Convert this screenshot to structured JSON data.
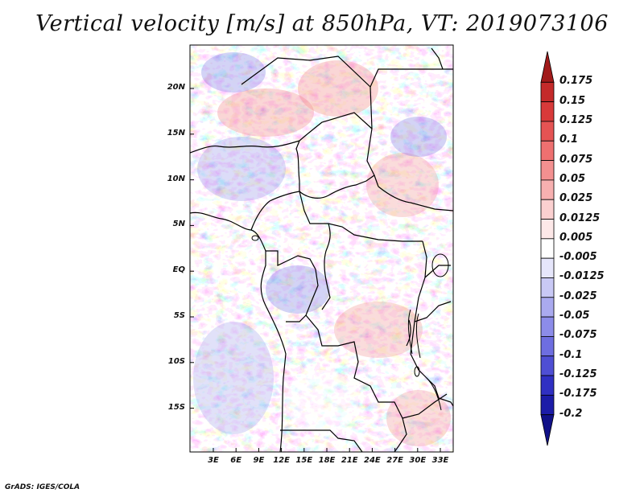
{
  "title": "Vertical velocity [m/s] at 850hPa, VT: 2019073106",
  "footer": "GrADS: IGES/COLA",
  "map": {
    "lat_labels": [
      "20N",
      "15N",
      "10N",
      "5N",
      "EQ",
      "5S",
      "10S",
      "15S"
    ],
    "lon_labels": [
      "3E",
      "6E",
      "9E",
      "12E",
      "15E",
      "18E",
      "21E",
      "24E",
      "27E",
      "30E",
      "33E"
    ]
  },
  "colorbar": {
    "labels": [
      "0.175",
      "0.15",
      "0.125",
      "0.1",
      "0.075",
      "0.05",
      "0.025",
      "0.0125",
      "0.005",
      "-0.005",
      "-0.0125",
      "-0.025",
      "-0.05",
      "-0.075",
      "-0.1",
      "-0.125",
      "-0.175",
      "-0.2"
    ],
    "colors": [
      "#a11a1a",
      "#c42a2a",
      "#d83a3a",
      "#e55353",
      "#ee7070",
      "#f39090",
      "#f7b0b0",
      "#fbd0d0",
      "#fde8e8",
      "#ffffff",
      "#e6e6fb",
      "#c9c9f5",
      "#aaaaef",
      "#8c8ce9",
      "#6e6ee0",
      "#4f4fd4",
      "#3030c3",
      "#1c1ca8",
      "#111188"
    ]
  }
}
